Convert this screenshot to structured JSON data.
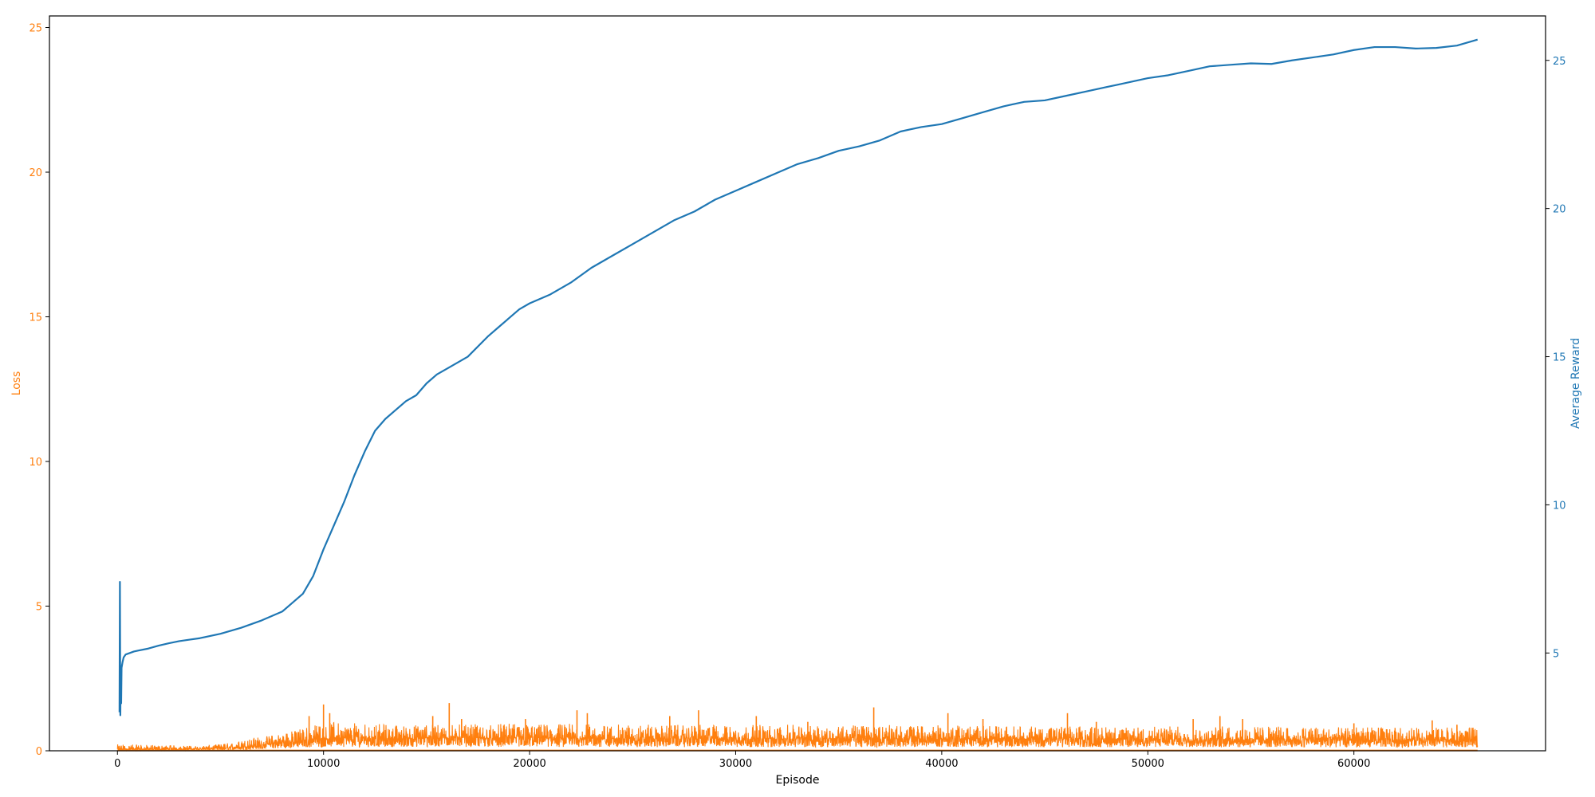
{
  "chart_data": {
    "type": "line",
    "xlabel": "Episode",
    "x_ticks": [
      0,
      10000,
      20000,
      30000,
      40000,
      50000,
      60000
    ],
    "xlim": [
      -3300,
      69300
    ],
    "left_axis": {
      "label": "Loss",
      "color": "#ff7f0e",
      "ticks": [
        0,
        5,
        10,
        15,
        20,
        25
      ],
      "ylim": [
        0,
        25.4
      ]
    },
    "right_axis": {
      "label": "Average Reward",
      "color": "#1f77b4",
      "ticks": [
        5,
        10,
        15,
        20,
        25
      ],
      "ylim": [
        1.7,
        26.5
      ]
    },
    "series": [
      {
        "axis": "right",
        "color": "#1f77b4",
        "x": [
          100,
          120,
          140,
          160,
          180,
          200,
          250,
          300,
          400,
          600,
          800,
          1000,
          1500,
          2000,
          2500,
          3000,
          3500,
          4000,
          5000,
          6000,
          7000,
          8000,
          9000,
          9500,
          10000,
          10500,
          11000,
          11500,
          12000,
          12500,
          13000,
          13500,
          14000,
          14500,
          15000,
          15500,
          16000,
          17000,
          18000,
          18500,
          19000,
          19500,
          20000,
          21000,
          22000,
          23000,
          24000,
          25000,
          26000,
          27000,
          28000,
          29000,
          30000,
          31000,
          32000,
          33000,
          34000,
          35000,
          36000,
          37000,
          38000,
          39000,
          40000,
          41000,
          42000,
          43000,
          44000,
          45000,
          46000,
          47000,
          48000,
          49000,
          50000,
          51000,
          52000,
          53000,
          54000,
          55000,
          56000,
          57000,
          58000,
          59000,
          60000,
          61000,
          62000,
          63000,
          64000,
          65000,
          66000
        ],
        "y": [
          3.0,
          7.4,
          2.9,
          4.3,
          3.3,
          4.5,
          4.7,
          4.85,
          4.95,
          5.0,
          5.05,
          5.08,
          5.15,
          5.25,
          5.33,
          5.4,
          5.45,
          5.5,
          5.65,
          5.85,
          6.1,
          6.4,
          7.0,
          7.6,
          8.5,
          9.3,
          10.1,
          11.0,
          11.8,
          12.5,
          12.9,
          13.2,
          13.5,
          13.7,
          14.1,
          14.4,
          14.6,
          15.0,
          15.7,
          16.0,
          16.3,
          16.6,
          16.8,
          17.1,
          17.5,
          18.0,
          18.4,
          18.8,
          19.2,
          19.6,
          19.9,
          20.3,
          20.6,
          20.9,
          21.2,
          21.5,
          21.7,
          21.95,
          22.1,
          22.3,
          22.6,
          22.75,
          22.85,
          23.05,
          23.25,
          23.45,
          23.6,
          23.65,
          23.8,
          23.95,
          24.1,
          24.25,
          24.4,
          24.5,
          24.65,
          24.8,
          24.85,
          24.9,
          24.88,
          25.0,
          25.1,
          25.2,
          25.35,
          25.45,
          25.45,
          25.4,
          25.42,
          25.5,
          25.7
        ]
      },
      {
        "axis": "left",
        "color": "#ff7f0e",
        "x_range": [
          0,
          66000
        ],
        "envelope_x": [
          0,
          2000,
          4000,
          5500,
          6500,
          7500,
          8500,
          9500,
          10500,
          12000,
          14000,
          16000,
          20000,
          25000,
          30000,
          35000,
          40000,
          45000,
          50000,
          55000,
          60000,
          66000
        ],
        "envelope_mean": [
          0.05,
          0.06,
          0.07,
          0.1,
          0.16,
          0.24,
          0.32,
          0.4,
          0.45,
          0.43,
          0.43,
          0.44,
          0.44,
          0.42,
          0.42,
          0.42,
          0.42,
          0.41,
          0.4,
          0.39,
          0.39,
          0.38
        ],
        "envelope_max": [
          0.22,
          0.2,
          0.17,
          0.28,
          0.45,
          0.55,
          0.7,
          0.9,
          1.0,
          0.95,
          0.9,
          0.9,
          0.95,
          0.9,
          0.9,
          0.9,
          0.88,
          0.85,
          0.85,
          0.85,
          0.82,
          0.8
        ],
        "spikes": [
          {
            "x": 9300,
            "y": 1.2
          },
          {
            "x": 10000,
            "y": 1.6
          },
          {
            "x": 10300,
            "y": 1.3
          },
          {
            "x": 15300,
            "y": 1.2
          },
          {
            "x": 16100,
            "y": 1.65
          },
          {
            "x": 16700,
            "y": 1.1
          },
          {
            "x": 19800,
            "y": 1.1
          },
          {
            "x": 22300,
            "y": 1.4
          },
          {
            "x": 22800,
            "y": 1.3
          },
          {
            "x": 26800,
            "y": 1.2
          },
          {
            "x": 28200,
            "y": 1.4
          },
          {
            "x": 31000,
            "y": 1.2
          },
          {
            "x": 33500,
            "y": 1.0
          },
          {
            "x": 36700,
            "y": 1.5
          },
          {
            "x": 40300,
            "y": 1.3
          },
          {
            "x": 42000,
            "y": 1.1
          },
          {
            "x": 46100,
            "y": 1.3
          },
          {
            "x": 47500,
            "y": 1.0
          },
          {
            "x": 52200,
            "y": 1.1
          },
          {
            "x": 53500,
            "y": 1.2
          },
          {
            "x": 54600,
            "y": 1.1
          },
          {
            "x": 60000,
            "y": 0.95
          },
          {
            "x": 63800,
            "y": 1.05
          },
          {
            "x": 65000,
            "y": 0.9
          }
        ]
      }
    ]
  }
}
